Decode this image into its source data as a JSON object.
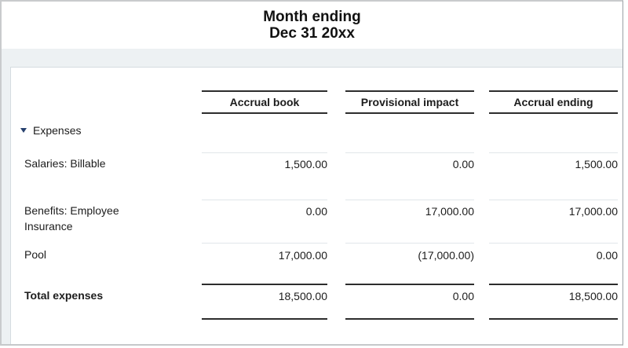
{
  "header": {
    "title_line1": "Month ending",
    "title_line2": "Dec 31 20xx"
  },
  "table": {
    "columns": [
      "Accrual book",
      "Provisional impact",
      "Accrual ending"
    ],
    "group": {
      "label": "Expenses",
      "icon": "collapse-triangle-icon",
      "expanded": true
    },
    "rows": [
      {
        "label": "Salaries: Billable",
        "values": [
          "1,500.00",
          "0.00",
          "1,500.00"
        ]
      },
      {
        "label": "Benefits: Employee Insurance",
        "values": [
          "0.00",
          "17,000.00",
          "17,000.00"
        ]
      },
      {
        "label": "Pool",
        "values": [
          "17,000.00",
          "(17,000.00)",
          "0.00"
        ]
      }
    ],
    "total": {
      "label": "Total expenses",
      "values": [
        "18,500.00",
        "0.00",
        "18,500.00"
      ]
    }
  },
  "colors": {
    "collapse_triangle": "#26406e",
    "page_band_background": "#edf1f3",
    "rule_dark": "#2d2d2d",
    "rule_faint": "#e1e6ea"
  }
}
